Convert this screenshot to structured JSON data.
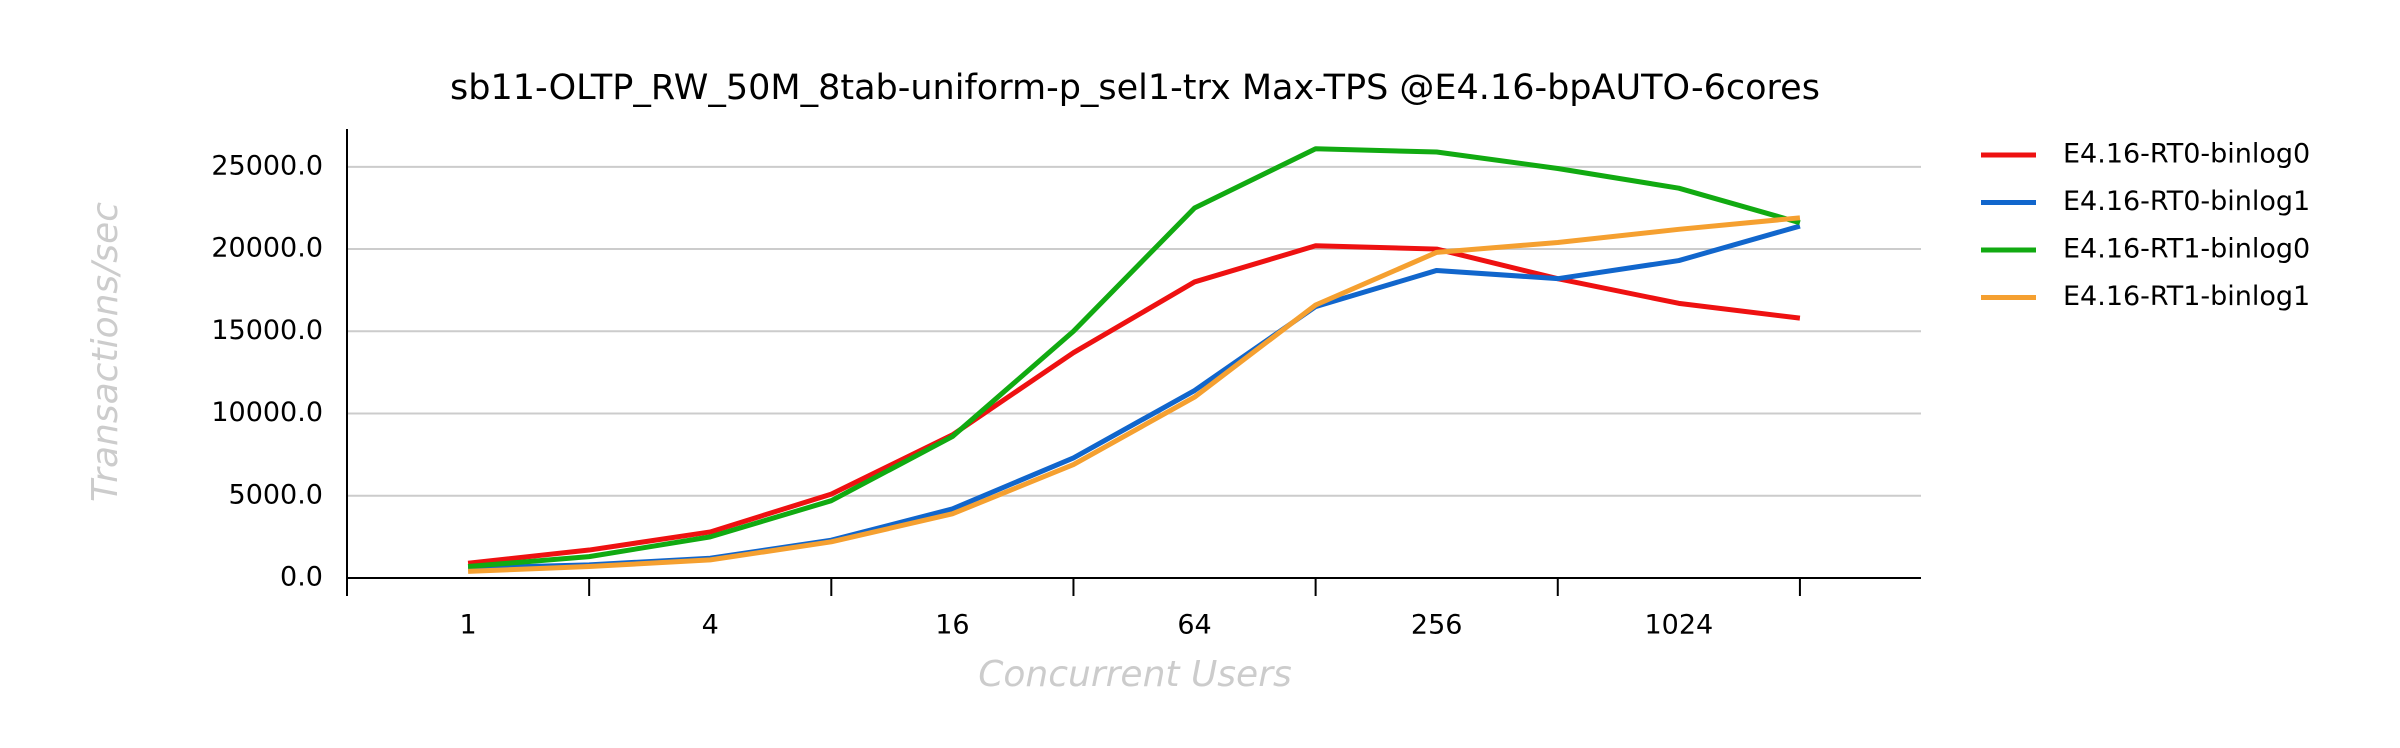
{
  "chart_data": {
    "type": "line",
    "title": "sb11-OLTP_RW_50M_8tab-uniform-p_sel1-trx Max-TPS @E4.16-bpAUTO-6cores",
    "x_label": "Concurrent Users",
    "y_label": "Transactions/sec",
    "categories": [
      "1",
      null,
      "4",
      null,
      "16",
      null,
      "64",
      null,
      "256",
      null,
      "1024",
      null
    ],
    "series": [
      {
        "name": "E4.16-RT0-binlog0",
        "color": "#ee1111",
        "values": [
          900,
          1700,
          2800,
          5100,
          8700,
          13700,
          18000,
          20200,
          20000,
          18200,
          16700,
          15800
        ]
      },
      {
        "name": "E4.16-RT0-binlog1",
        "color": "#1166cc",
        "values": [
          600,
          800,
          1200,
          2300,
          4200,
          7300,
          11400,
          16500,
          18700,
          18200,
          19300,
          21400
        ]
      },
      {
        "name": "E4.16-RT1-binlog0",
        "color": "#11aa11",
        "values": [
          700,
          1300,
          2500,
          4700,
          8600,
          15000,
          22500,
          26100,
          25900,
          24900,
          23700,
          21600
        ]
      },
      {
        "name": "E4.16-RT1-binlog1",
        "color": "#f5a030",
        "values": [
          400,
          700,
          1100,
          2200,
          3900,
          6900,
          11000,
          16600,
          19800,
          20400,
          21200,
          21900
        ]
      }
    ],
    "ylim": [
      0,
      27300
    ],
    "yticks": [
      {
        "value": 0,
        "label": "0.0"
      },
      {
        "value": 5000,
        "label": "5000.0"
      },
      {
        "value": 10000,
        "label": "10000.0"
      },
      {
        "value": 15000,
        "label": "15000.0"
      },
      {
        "value": 20000,
        "label": "20000.0"
      },
      {
        "value": 25000,
        "label": "25000.0"
      }
    ],
    "grid": true,
    "legend": "right"
  }
}
